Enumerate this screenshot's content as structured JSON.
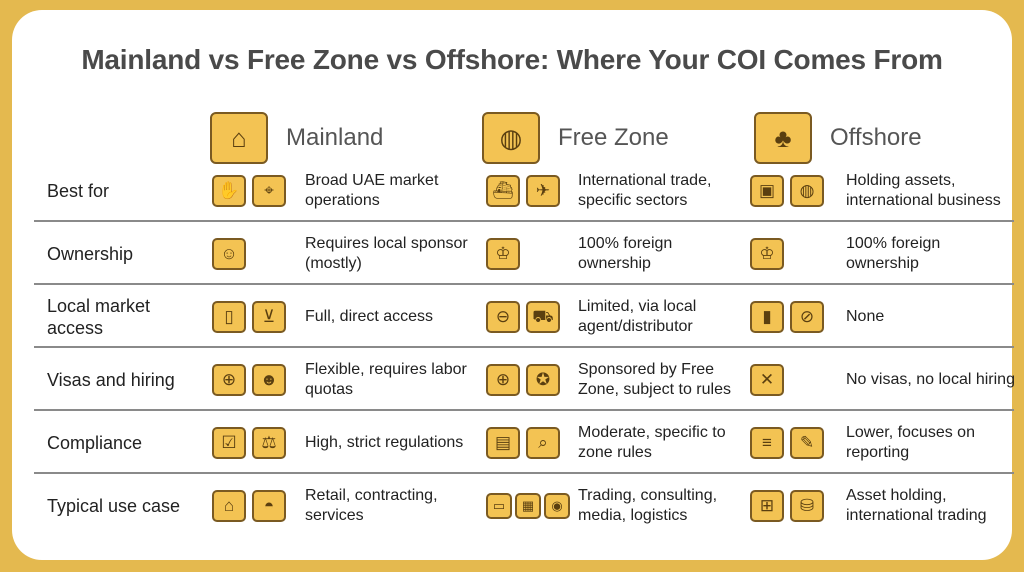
{
  "title": "Mainland vs Free Zone vs Offshore: Where Your COI Comes From",
  "colors": {
    "frame": "#e4b94f",
    "icon_fill": "#f3c353",
    "icon_outline": "#7a5a22"
  },
  "columns": [
    {
      "label": "Mainland",
      "icon": "government-building-icon"
    },
    {
      "label": "Free Zone",
      "icon": "globe-gate-icon"
    },
    {
      "label": "Offshore",
      "icon": "palm-island-icon"
    }
  ],
  "rows": [
    {
      "label": "Best for",
      "cells": [
        {
          "text": "Broad UAE market operations",
          "icons": [
            "handshake-icon",
            "map-pin-icon"
          ]
        },
        {
          "text": "International trade, specific sectors",
          "icons": [
            "ship-icon",
            "airplane-icon"
          ]
        },
        {
          "text": "Holding assets, international business",
          "icons": [
            "treasure-chest-icon",
            "globe-icon"
          ]
        }
      ]
    },
    {
      "label": "Ownership",
      "cells": [
        {
          "text": "Requires local sponsor (mostly)",
          "icons": [
            "two-people-icon"
          ]
        },
        {
          "text": "100% foreign ownership",
          "icons": [
            "crowned-person-icon"
          ]
        },
        {
          "text": "100% foreign ownership",
          "icons": [
            "crowned-person-icon"
          ]
        }
      ]
    },
    {
      "label": "Local market access",
      "cells": [
        {
          "text": "Full, direct access",
          "icons": [
            "open-door-icon",
            "shopping-cart-icon"
          ]
        },
        {
          "text": "Limited, via local agent/distributor",
          "icons": [
            "barrier-icon",
            "delivery-truck-icon"
          ]
        },
        {
          "text": "None",
          "icons": [
            "closed-door-icon",
            "prohibited-icon"
          ]
        }
      ]
    },
    {
      "label": "Visas and hiring",
      "cells": [
        {
          "text": "Flexible, requires labor quotas",
          "icons": [
            "passports-icon",
            "group-icon"
          ]
        },
        {
          "text": "Sponsored by Free Zone, subject to rules",
          "icons": [
            "passport-icon",
            "award-badge-icon"
          ]
        },
        {
          "text": "No visas, no local hiring",
          "icons": [
            "crossed-passport-icon"
          ]
        }
      ]
    },
    {
      "label": "Compliance",
      "cells": [
        {
          "text": "High, strict regulations",
          "icons": [
            "checklist-icon",
            "gavel-icon"
          ]
        },
        {
          "text": "Moderate, specific to zone rules",
          "icons": [
            "rule-book-icon",
            "magnifier-icon"
          ]
        },
        {
          "text": "Lower, focuses on reporting",
          "icons": [
            "document-icon",
            "pen-icon"
          ]
        }
      ]
    },
    {
      "label": "Typical use case",
      "cells": [
        {
          "text": "Retail, contracting, services",
          "icons": [
            "retail-store-icon",
            "hard-hat-icon"
          ]
        },
        {
          "text": "Trading, consulting, media, logistics",
          "icons": [
            "laptop-icon",
            "package-icon",
            "camera-icon"
          ]
        },
        {
          "text": "Asset holding, international trading",
          "icons": [
            "safe-icon",
            "coins-icon"
          ]
        }
      ]
    }
  ]
}
